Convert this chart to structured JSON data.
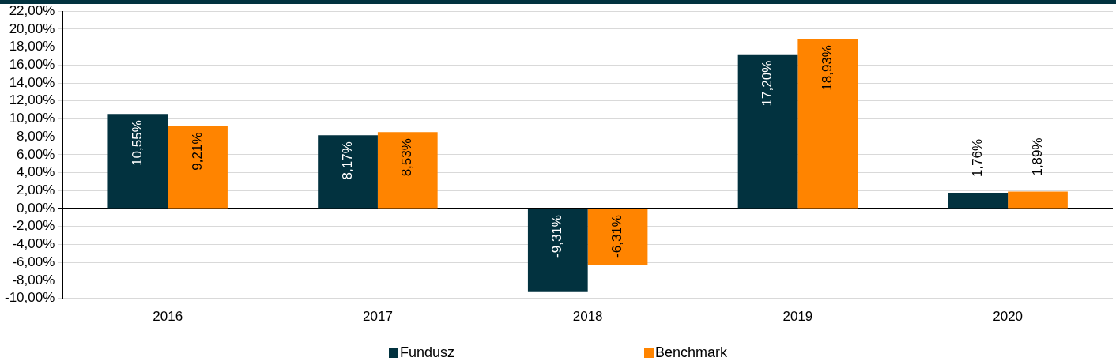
{
  "chart_data": {
    "type": "bar",
    "categories": [
      "2016",
      "2017",
      "2018",
      "2019",
      "2020"
    ],
    "series": [
      {
        "name": "Fundusz",
        "color": "#02323f",
        "values": [
          10.55,
          8.17,
          -9.31,
          17.2,
          1.76
        ],
        "value_labels": [
          "10,55%",
          "8,17%",
          "-9,31%",
          "17,20%",
          "1,76%"
        ]
      },
      {
        "name": "Benchmark",
        "color": "#ff8400",
        "values": [
          9.21,
          8.53,
          -6.31,
          18.93,
          1.89
        ],
        "value_labels": [
          "9,21%",
          "8,53%",
          "-6,31%",
          "18,93%",
          "1,89%"
        ]
      }
    ],
    "ylim": [
      -10,
      22
    ],
    "yticks": [
      {
        "value": -10,
        "label": "-10,00%"
      },
      {
        "value": -8,
        "label": "-8,00%"
      },
      {
        "value": -6,
        "label": "-6,00%"
      },
      {
        "value": -4,
        "label": "-4,00%"
      },
      {
        "value": -2,
        "label": "-2,00%"
      },
      {
        "value": 0,
        "label": "0,00%"
      },
      {
        "value": 2,
        "label": "2,00%"
      },
      {
        "value": 4,
        "label": "4,00%"
      },
      {
        "value": 6,
        "label": "6,00%"
      },
      {
        "value": 8,
        "label": "8,00%"
      },
      {
        "value": 10,
        "label": "10,00%"
      },
      {
        "value": 12,
        "label": "12,00%"
      },
      {
        "value": 14,
        "label": "14,00%"
      },
      {
        "value": 16,
        "label": "16,00%"
      },
      {
        "value": 18,
        "label": "18,00%"
      },
      {
        "value": 20,
        "label": "20,00%"
      },
      {
        "value": 22,
        "label": "22,00%"
      }
    ],
    "grid": "y",
    "legend": "bottom"
  }
}
